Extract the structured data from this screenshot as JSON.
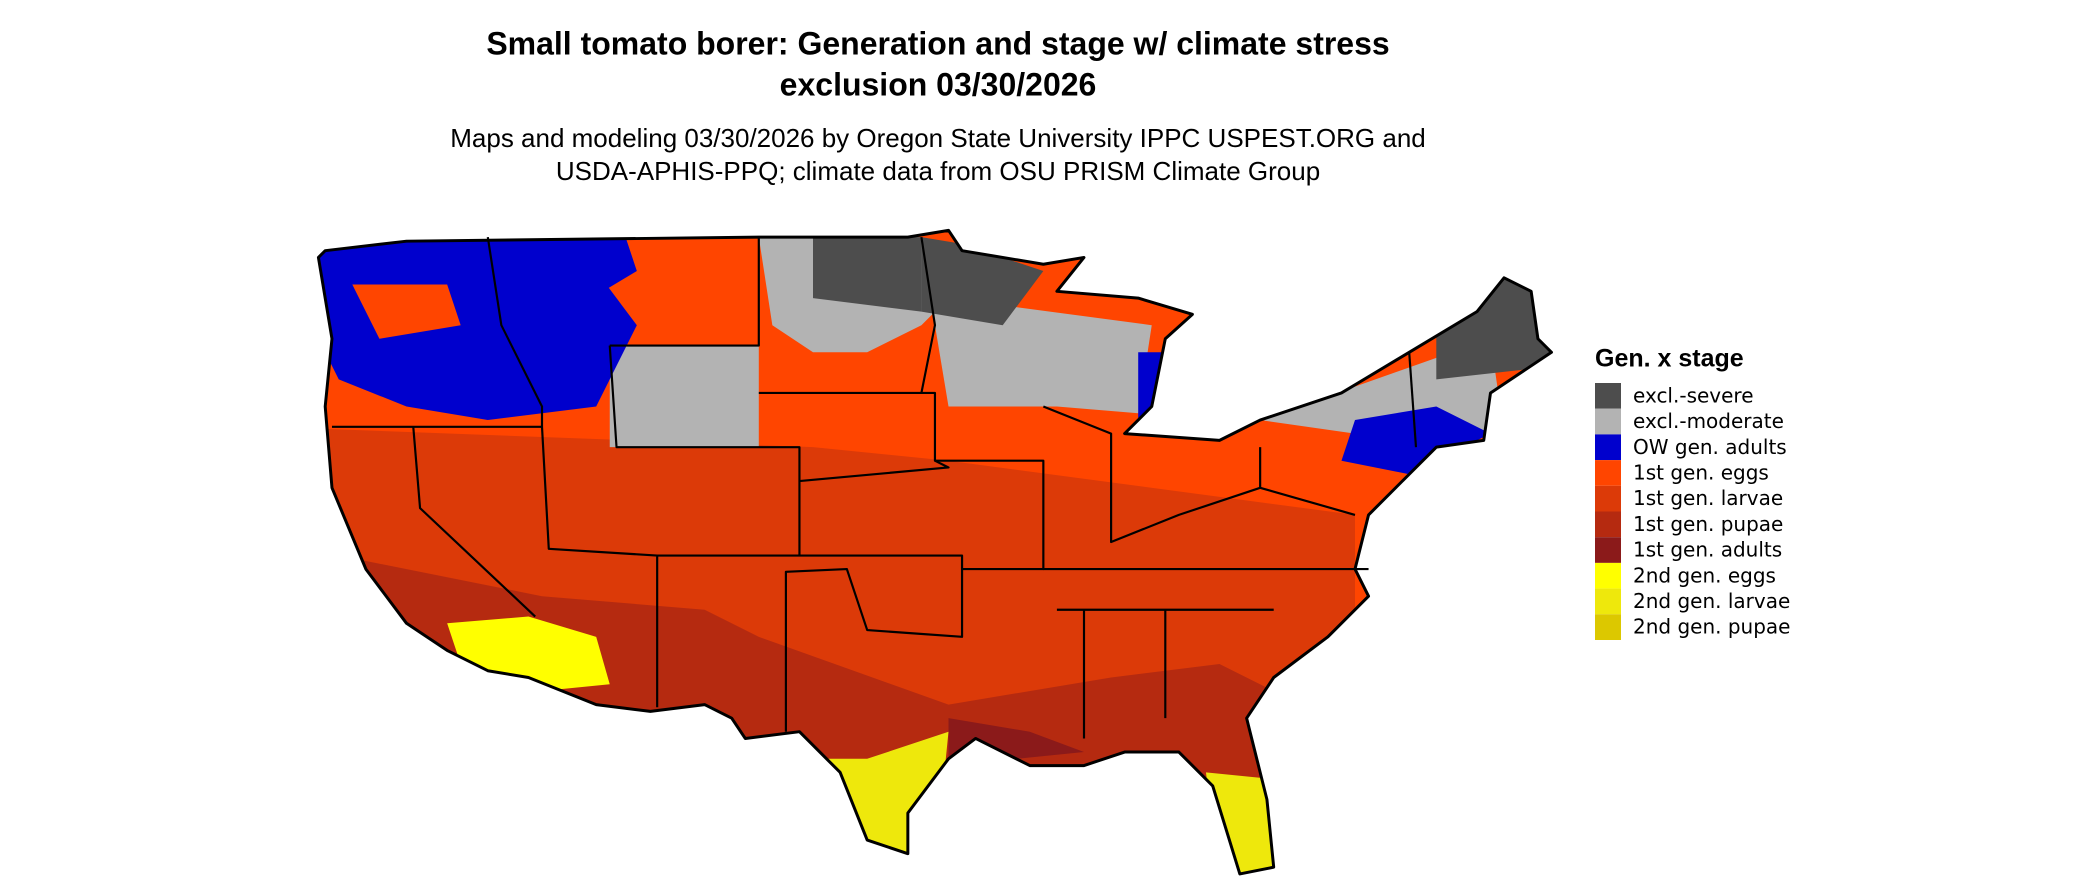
{
  "header": {
    "title_lines": [
      "Small tomato borer: Generation and stage w/ climate stress",
      "exclusion 03/30/2026"
    ],
    "subtitle_lines": [
      "Maps and modeling 03/30/2026 by Oregon State University IPPC USPEST.ORG and",
      "USDA-APHIS-PPQ; climate data from OSU PRISM Climate Group"
    ]
  },
  "legend": {
    "title": "Gen. x stage",
    "items": [
      {
        "label": "excl.-severe",
        "color": "#4d4d4d"
      },
      {
        "label": "excl.-moderate",
        "color": "#b3b3b3"
      },
      {
        "label": "OW gen. adults",
        "color": "#0000cd"
      },
      {
        "label": "1st gen. eggs",
        "color": "#ff4500"
      },
      {
        "label": "1st gen. larvae",
        "color": "#dc3a08"
      },
      {
        "label": "1st gen. pupae",
        "color": "#b52a10"
      },
      {
        "label": "1st gen. adults",
        "color": "#8b1a1a"
      },
      {
        "label": "2nd gen. eggs",
        "color": "#ffff00"
      },
      {
        "label": "2nd gen. larvae",
        "color": "#eee80c"
      },
      {
        "label": "2nd gen. pupae",
        "color": "#dcc800"
      }
    ]
  }
}
